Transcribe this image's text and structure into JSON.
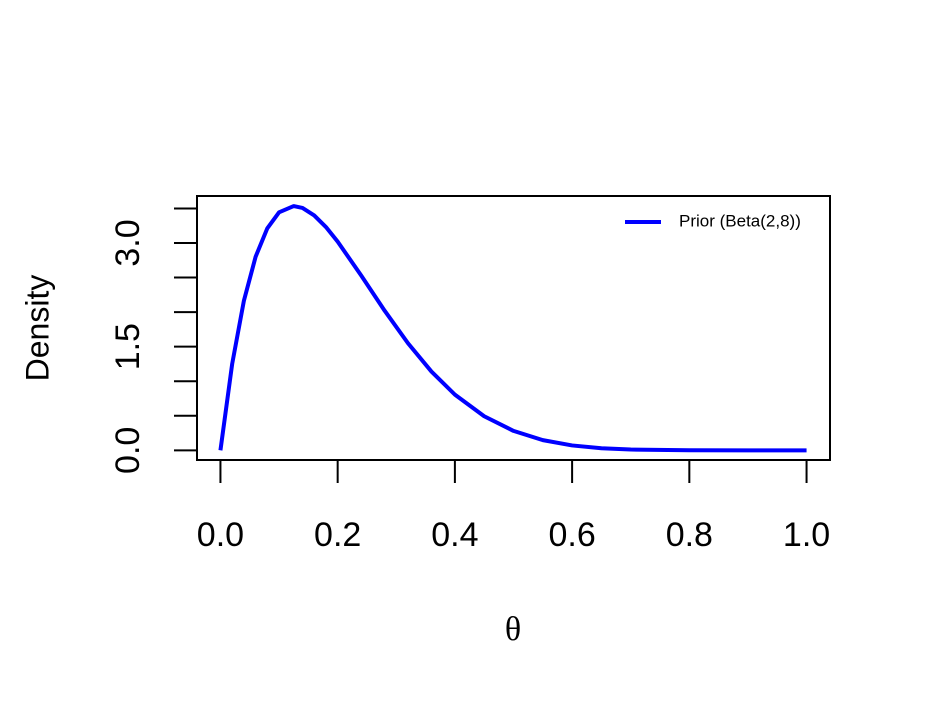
{
  "chart_data": {
    "type": "line",
    "y_label": "Density",
    "x_label": "θ",
    "x": [
      0,
      0.02,
      0.04,
      0.06,
      0.08,
      0.1,
      0.125,
      0.14,
      0.16,
      0.18,
      0.2,
      0.24,
      0.28,
      0.32,
      0.36,
      0.4,
      0.45,
      0.5,
      0.55,
      0.6,
      0.65,
      0.7,
      0.8,
      0.9,
      1.0
    ],
    "series": [
      {
        "name": "Prior (Beta(2,8))",
        "color": "#0000ff",
        "values": [
          0,
          1.25,
          2.164,
          2.801,
          3.213,
          3.444,
          3.534,
          3.507,
          3.399,
          3.231,
          3.02,
          2.531,
          2.022,
          1.549,
          1.14,
          0.806,
          0.493,
          0.281,
          0.148,
          0.0708,
          0.0301,
          0.011,
          0.00074,
          6.5e-06,
          0
        ]
      }
    ],
    "xlim": [
      -0.04,
      1.04
    ],
    "ylim": [
      -0.14,
      3.68
    ],
    "xticks": [
      {
        "value": 0,
        "label": "0.0"
      },
      {
        "value": 0.2,
        "label": "0.2"
      },
      {
        "value": 0.4,
        "label": "0.4"
      },
      {
        "value": 0.6,
        "label": "0.6"
      },
      {
        "value": 0.8,
        "label": "0.8"
      },
      {
        "value": 1,
        "label": "1.0"
      }
    ],
    "yticks": [
      {
        "value": 0,
        "label": "0.0"
      },
      {
        "value": 1.5,
        "label": "1.5"
      },
      {
        "value": 3,
        "label": "3.0"
      }
    ],
    "yticks_unlabeled": [
      0.5,
      1,
      2,
      2.5,
      3.5
    ],
    "legend": "topright",
    "grid": false
  }
}
